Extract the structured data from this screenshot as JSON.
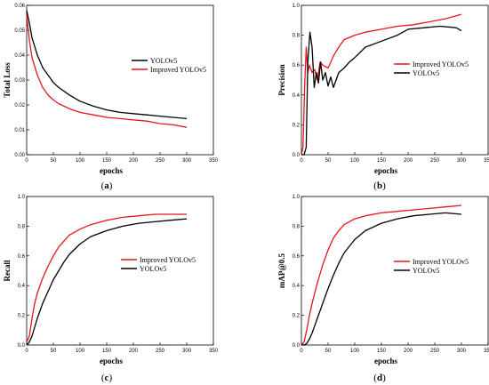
{
  "colors": {
    "yolov5": "#000000",
    "improved": "#e8141c"
  },
  "chart_data": [
    {
      "id": "a",
      "type": "line",
      "panel_label": "a",
      "xlabel": "epochs",
      "ylabel": "Total Loss",
      "xlim": [
        0,
        350
      ],
      "ylim": [
        0.0,
        0.06
      ],
      "xticks": [
        0,
        50,
        100,
        150,
        200,
        250,
        300,
        350
      ],
      "yticks": [
        "0.00",
        "0.01",
        "0.02",
        "0.03",
        "0.04",
        "0.05",
        "0.06"
      ],
      "legend_position": "top-right",
      "legend": [
        "YOLOv5",
        "Improved YOLOv5"
      ],
      "grid": false,
      "series": [
        {
          "name": "YOLOv5",
          "color_key": "yolov5",
          "x": [
            0,
            5,
            10,
            20,
            30,
            40,
            50,
            60,
            80,
            100,
            125,
            150,
            175,
            200,
            225,
            250,
            275,
            300
          ],
          "y": [
            0.058,
            0.053,
            0.047,
            0.04,
            0.035,
            0.032,
            0.029,
            0.027,
            0.024,
            0.0215,
            0.0195,
            0.018,
            0.017,
            0.0165,
            0.016,
            0.0155,
            0.015,
            0.0145
          ]
        },
        {
          "name": "Improved YOLOv5",
          "color_key": "improved",
          "x": [
            0,
            5,
            10,
            20,
            30,
            40,
            50,
            60,
            80,
            100,
            125,
            150,
            175,
            200,
            225,
            250,
            275,
            300
          ],
          "y": [
            0.056,
            0.046,
            0.039,
            0.032,
            0.027,
            0.024,
            0.022,
            0.0205,
            0.0185,
            0.017,
            0.016,
            0.015,
            0.0145,
            0.014,
            0.0135,
            0.0125,
            0.012,
            0.011
          ]
        }
      ]
    },
    {
      "id": "b",
      "type": "line",
      "panel_label": "b",
      "xlabel": "epochs",
      "ylabel": "Precision",
      "xlim": [
        0,
        350
      ],
      "ylim": [
        0.0,
        1.0
      ],
      "xticks": [
        0,
        50,
        100,
        150,
        200,
        250,
        300,
        350
      ],
      "yticks": [
        "0.0",
        "0.2",
        "0.4",
        "0.6",
        "0.8",
        "1.0"
      ],
      "legend_position": "right",
      "legend": [
        "Improved YOLOv5",
        "YOLOv5"
      ],
      "grid": false,
      "series": [
        {
          "name": "Improved YOLOv5",
          "color_key": "improved",
          "x": [
            0,
            3,
            6,
            9,
            12,
            15,
            20,
            25,
            30,
            35,
            40,
            50,
            60,
            70,
            80,
            100,
            120,
            150,
            180,
            210,
            240,
            270,
            300
          ],
          "y": [
            0.0,
            0.05,
            0.45,
            0.72,
            0.55,
            0.6,
            0.55,
            0.57,
            0.5,
            0.62,
            0.6,
            0.58,
            0.66,
            0.72,
            0.77,
            0.8,
            0.82,
            0.84,
            0.86,
            0.87,
            0.89,
            0.91,
            0.94
          ]
        },
        {
          "name": "YOLOv5",
          "color_key": "yolov5",
          "x": [
            0,
            5,
            9,
            12,
            16,
            20,
            24,
            28,
            32,
            36,
            40,
            45,
            50,
            55,
            60,
            70,
            80,
            90,
            100,
            120,
            150,
            180,
            200,
            230,
            260,
            290,
            300
          ],
          "y": [
            0.0,
            0.0,
            0.05,
            0.62,
            0.82,
            0.72,
            0.45,
            0.55,
            0.48,
            0.62,
            0.5,
            0.55,
            0.46,
            0.52,
            0.45,
            0.55,
            0.58,
            0.62,
            0.65,
            0.72,
            0.76,
            0.8,
            0.84,
            0.85,
            0.86,
            0.85,
            0.83
          ]
        }
      ]
    },
    {
      "id": "c",
      "type": "line",
      "panel_label": "c",
      "xlabel": "epochs",
      "ylabel": "Recall",
      "xlim": [
        0,
        350
      ],
      "ylim": [
        0.0,
        1.0
      ],
      "xticks": [
        0,
        50,
        100,
        150,
        200,
        250,
        300,
        350
      ],
      "yticks": [
        "0.0",
        "0.2",
        "0.4",
        "0.6",
        "0.8",
        "1.0"
      ],
      "legend_position": "right",
      "legend": [
        "Improved YOLOv5",
        "YOLOv5"
      ],
      "grid": false,
      "series": [
        {
          "name": "Improved YOLOv5",
          "color_key": "improved",
          "x": [
            0,
            5,
            10,
            15,
            20,
            30,
            40,
            50,
            60,
            70,
            80,
            100,
            120,
            150,
            180,
            210,
            240,
            270,
            300
          ],
          "y": [
            0.02,
            0.06,
            0.18,
            0.28,
            0.35,
            0.45,
            0.53,
            0.6,
            0.66,
            0.7,
            0.74,
            0.78,
            0.81,
            0.84,
            0.86,
            0.87,
            0.88,
            0.88,
            0.88
          ]
        },
        {
          "name": "YOLOv5",
          "color_key": "yolov5",
          "x": [
            0,
            5,
            10,
            15,
            20,
            30,
            40,
            50,
            60,
            70,
            80,
            100,
            120,
            150,
            180,
            210,
            240,
            270,
            300
          ],
          "y": [
            0.0,
            0.02,
            0.06,
            0.12,
            0.18,
            0.28,
            0.36,
            0.44,
            0.5,
            0.56,
            0.61,
            0.68,
            0.73,
            0.77,
            0.8,
            0.82,
            0.83,
            0.84,
            0.85
          ]
        }
      ]
    },
    {
      "id": "d",
      "type": "line",
      "panel_label": "d",
      "xlabel": "epochs",
      "ylabel": "mAP@0.5",
      "xlim": [
        0,
        350
      ],
      "ylim": [
        0.0,
        1.0
      ],
      "xticks": [
        0,
        50,
        100,
        150,
        200,
        250,
        300,
        350
      ],
      "yticks": [
        "0.0",
        "0.2",
        "0.4",
        "0.6",
        "0.8",
        "1.0"
      ],
      "legend_position": "right",
      "legend": [
        "Improved YOLOv5",
        "YOLOv5"
      ],
      "grid": false,
      "series": [
        {
          "name": "Improved YOLOv5",
          "color_key": "improved",
          "x": [
            0,
            5,
            10,
            15,
            20,
            30,
            40,
            50,
            60,
            70,
            80,
            100,
            120,
            150,
            180,
            210,
            240,
            270,
            300
          ],
          "y": [
            0.0,
            0.02,
            0.1,
            0.2,
            0.28,
            0.42,
            0.54,
            0.64,
            0.72,
            0.77,
            0.81,
            0.85,
            0.87,
            0.89,
            0.9,
            0.91,
            0.92,
            0.93,
            0.94
          ]
        },
        {
          "name": "YOLOv5",
          "color_key": "yolov5",
          "x": [
            0,
            5,
            10,
            15,
            20,
            30,
            40,
            50,
            60,
            70,
            80,
            100,
            120,
            150,
            180,
            210,
            240,
            270,
            300
          ],
          "y": [
            0.0,
            0.0,
            0.01,
            0.04,
            0.08,
            0.18,
            0.28,
            0.38,
            0.47,
            0.55,
            0.62,
            0.71,
            0.77,
            0.82,
            0.85,
            0.87,
            0.88,
            0.89,
            0.88
          ]
        }
      ]
    }
  ]
}
